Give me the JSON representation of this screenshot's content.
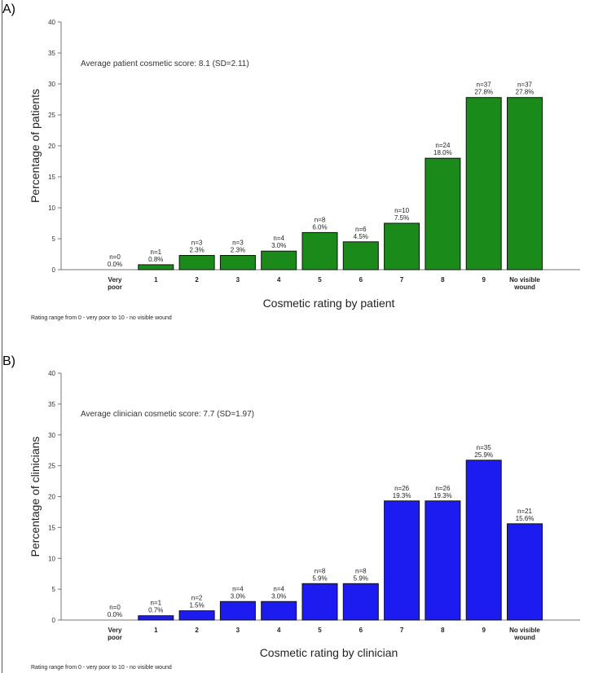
{
  "chart_data": [
    {
      "type": "bar",
      "panel_label": "A)",
      "title": "",
      "annotation": "Average patient cosmetic score: 8.1 (SD=2.11)",
      "xlabel": "Cosmetic rating by patient",
      "ylabel": "Percentage of patients",
      "footnote": "Rating range from 0 - very poor to 10 - no visible wound",
      "ylim": [
        0,
        40
      ],
      "yticks": [
        0,
        5,
        10,
        15,
        20,
        25,
        30,
        35,
        40
      ],
      "categories": [
        [
          "Very",
          "poor"
        ],
        [
          "1"
        ],
        [
          "2"
        ],
        [
          "3"
        ],
        [
          "4"
        ],
        [
          "5"
        ],
        [
          "6"
        ],
        [
          "7"
        ],
        [
          "8"
        ],
        [
          "9"
        ],
        [
          "No visible",
          "wound"
        ]
      ],
      "values": [
        0.0,
        0.8,
        2.3,
        2.3,
        3.0,
        6.0,
        4.5,
        7.5,
        18.0,
        27.8,
        27.8
      ],
      "counts": [
        "n=0",
        "n=1",
        "n=3",
        "n=3",
        "n=4",
        "n=8",
        "n=6",
        "n=10",
        "n=24",
        "n=37",
        "n=37"
      ],
      "pct_labels": [
        "0.0%",
        "0.8%",
        "2.3%",
        "2.3%",
        "3.0%",
        "6.0%",
        "4.5%",
        "7.5%",
        "18.0%",
        "27.8%",
        "27.8%"
      ],
      "color": "#1a8a1a"
    },
    {
      "type": "bar",
      "panel_label": "B)",
      "title": "",
      "annotation": "Average clinician cosmetic score: 7.7 (SD=1.97)",
      "xlabel": "Cosmetic rating by clinician",
      "ylabel": "Percentage of clinicians",
      "footnote": "Rating range from 0 - very poor to 10 - no visible wound",
      "ylim": [
        0,
        40
      ],
      "yticks": [
        0,
        5,
        10,
        15,
        20,
        25,
        30,
        35,
        40
      ],
      "categories": [
        [
          "Very",
          "poor"
        ],
        [
          "1"
        ],
        [
          "2"
        ],
        [
          "3"
        ],
        [
          "4"
        ],
        [
          "5"
        ],
        [
          "6"
        ],
        [
          "7"
        ],
        [
          "8"
        ],
        [
          "9"
        ],
        [
          "No visible",
          "wound"
        ]
      ],
      "values": [
        0.0,
        0.7,
        1.5,
        3.0,
        3.0,
        5.9,
        5.9,
        19.3,
        19.3,
        25.9,
        15.6
      ],
      "counts": [
        "n=0",
        "n=1",
        "n=2",
        "n=4",
        "n=4",
        "n=8",
        "n=8",
        "n=26",
        "n=26",
        "n=35",
        "n=21"
      ],
      "pct_labels": [
        "0.0%",
        "0.7%",
        "1.5%",
        "3.0%",
        "3.0%",
        "5.9%",
        "5.9%",
        "19.3%",
        "19.3%",
        "25.9%",
        "15.6%"
      ],
      "color": "#1c1cf0"
    }
  ]
}
